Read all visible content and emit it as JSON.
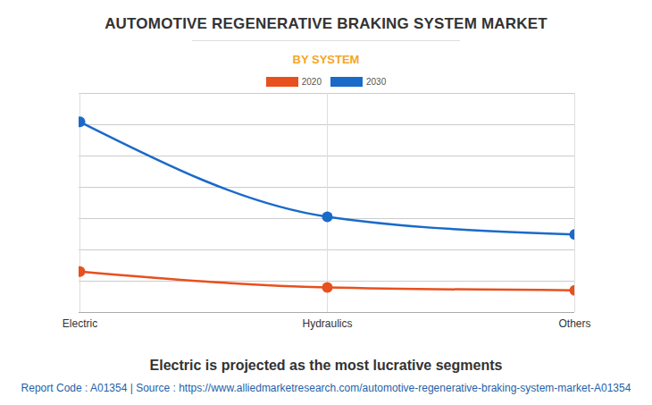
{
  "chart_data": {
    "type": "line",
    "title": "AUTOMOTIVE REGENERATIVE BRAKING SYSTEM MARKET",
    "subtitle": "BY SYSTEM",
    "categories": [
      "Electric",
      "Hydraulics",
      "Others"
    ],
    "series": [
      {
        "name": "2020",
        "color": "#e8501e",
        "marker": "circle",
        "values": [
          1.31,
          0.8,
          0.71
        ]
      },
      {
        "name": "2030",
        "color": "#1a6ac9",
        "marker": "circle",
        "values": [
          6.09,
          3.06,
          2.49
        ]
      }
    ],
    "ylim": [
      0,
      7
    ],
    "yticks": [
      0,
      1,
      2,
      3,
      4,
      5,
      6,
      7
    ],
    "grid": true,
    "tick_labels": "x",
    "legend": "top",
    "annotations": [
      "Electric is projected as the most lucrative segments",
      "Report Code : A01354  |  Source : https://www.alliedmarketresearch.com/automotive-regenerative-braking-system-market-A01354"
    ]
  }
}
